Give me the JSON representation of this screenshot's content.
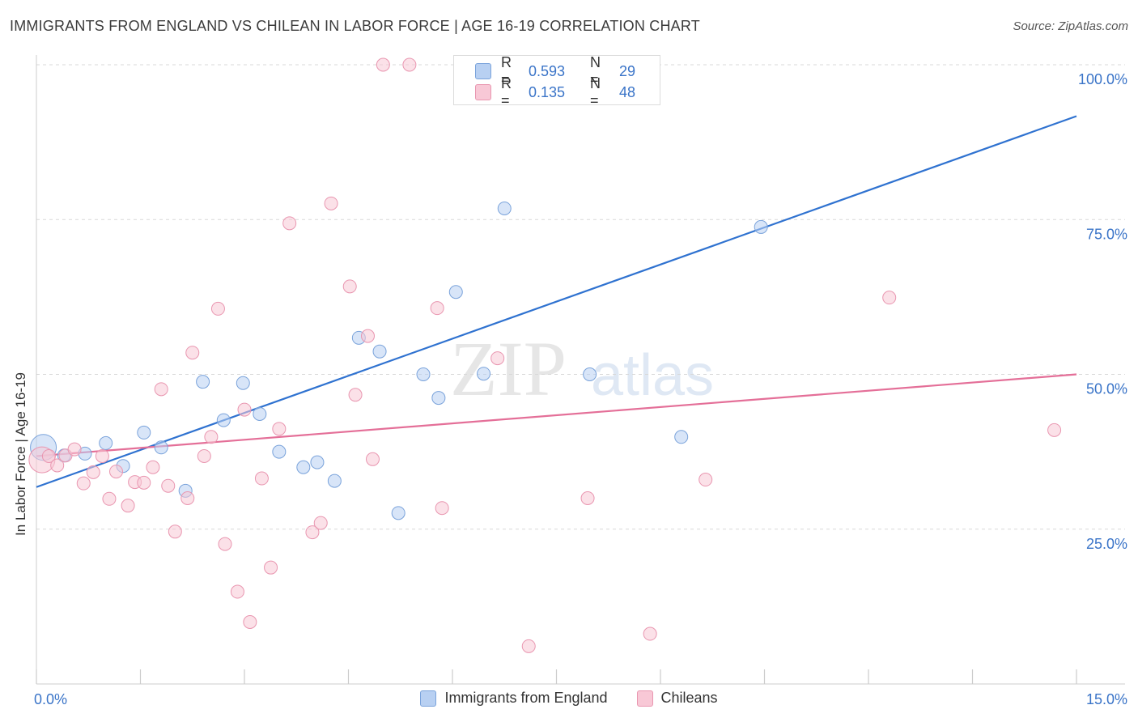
{
  "title": "IMMIGRANTS FROM ENGLAND VS CHILEAN IN LABOR FORCE | AGE 16-19 CORRELATION CHART",
  "source": "Source: ZipAtlas.com",
  "watermark": {
    "zip": "ZIP",
    "atlas": "atlas"
  },
  "colors": {
    "blue_fill": "#b8d0f2",
    "blue_stroke": "#7aa3db",
    "blue_line": "#2f72d0",
    "pink_fill": "#f8c8d6",
    "pink_stroke": "#e996b0",
    "pink_line": "#e46f98",
    "tick_label": "#3a74c8",
    "grid": "#d8d8d8"
  },
  "stats": [
    {
      "r_label": "R =",
      "r_value": "0.593",
      "n_label": "N =",
      "n_value": "29",
      "color": "blue"
    },
    {
      "r_label": "R =",
      "r_value": "0.135",
      "n_label": "N =",
      "n_value": "48",
      "color": "pink"
    }
  ],
  "legend": [
    {
      "label": "Immigrants from England",
      "color": "blue"
    },
    {
      "label": "Chileans",
      "color": "pink"
    }
  ],
  "chart_data": {
    "type": "scatter",
    "title": "IMMIGRANTS FROM ENGLAND VS CHILEAN IN LABOR FORCE | AGE 16-19 CORRELATION CHART",
    "xlabel": "",
    "ylabel": "In Labor Force | Age 16-19",
    "xlim": [
      0,
      15
    ],
    "ylim": [
      0,
      100
    ],
    "x_tick_labels": [
      {
        "value": 0,
        "label": "0.0%"
      },
      {
        "value": 15,
        "label": "15.0%"
      }
    ],
    "y_tick_labels": [
      {
        "value": 25,
        "label": "25.0%"
      },
      {
        "value": 50,
        "label": "50.0%"
      },
      {
        "value": 75,
        "label": "75.0%"
      },
      {
        "value": 100,
        "label": "100.0%"
      }
    ],
    "grid": true,
    "legend_position": "bottom",
    "series": [
      {
        "name": "Immigrants from England",
        "color": "blue",
        "trend": {
          "x": [
            0,
            15
          ],
          "y": [
            31.8,
            91.7
          ]
        },
        "points": [
          {
            "x": 0.1,
            "y": 38.2,
            "size": "large"
          },
          {
            "x": 0.4,
            "y": 36.9
          },
          {
            "x": 0.7,
            "y": 37.2
          },
          {
            "x": 1.0,
            "y": 38.9
          },
          {
            "x": 1.25,
            "y": 35.2
          },
          {
            "x": 1.55,
            "y": 40.6
          },
          {
            "x": 1.8,
            "y": 38.2
          },
          {
            "x": 2.15,
            "y": 31.2
          },
          {
            "x": 2.4,
            "y": 48.8
          },
          {
            "x": 2.7,
            "y": 42.6
          },
          {
            "x": 2.98,
            "y": 48.6
          },
          {
            "x": 3.22,
            "y": 43.6
          },
          {
            "x": 3.5,
            "y": 37.5
          },
          {
            "x": 3.85,
            "y": 35.0
          },
          {
            "x": 4.05,
            "y": 35.8
          },
          {
            "x": 4.3,
            "y": 32.8
          },
          {
            "x": 4.65,
            "y": 55.9
          },
          {
            "x": 4.95,
            "y": 53.7
          },
          {
            "x": 5.22,
            "y": 27.6
          },
          {
            "x": 5.58,
            "y": 50.0
          },
          {
            "x": 5.8,
            "y": 46.2
          },
          {
            "x": 6.05,
            "y": 63.3
          },
          {
            "x": 6.45,
            "y": 50.1
          },
          {
            "x": 6.75,
            "y": 76.8
          },
          {
            "x": 7.0,
            "y": 100.0
          },
          {
            "x": 7.35,
            "y": 100.0
          },
          {
            "x": 7.98,
            "y": 50.0
          },
          {
            "x": 9.3,
            "y": 39.9
          },
          {
            "x": 10.45,
            "y": 73.8
          }
        ]
      },
      {
        "name": "Chileans",
        "color": "pink",
        "trend": {
          "x": [
            0,
            15
          ],
          "y": [
            36.8,
            50.0
          ]
        },
        "points": [
          {
            "x": 0.08,
            "y": 36.2,
            "size": "large"
          },
          {
            "x": 0.18,
            "y": 36.8
          },
          {
            "x": 0.3,
            "y": 35.3
          },
          {
            "x": 0.42,
            "y": 36.9
          },
          {
            "x": 0.55,
            "y": 37.9
          },
          {
            "x": 0.68,
            "y": 32.4
          },
          {
            "x": 0.82,
            "y": 34.2
          },
          {
            "x": 0.95,
            "y": 36.8
          },
          {
            "x": 1.05,
            "y": 29.9
          },
          {
            "x": 1.15,
            "y": 34.3
          },
          {
            "x": 1.32,
            "y": 28.8
          },
          {
            "x": 1.42,
            "y": 32.6
          },
          {
            "x": 1.55,
            "y": 32.5
          },
          {
            "x": 1.68,
            "y": 35.0
          },
          {
            "x": 1.8,
            "y": 47.6
          },
          {
            "x": 1.9,
            "y": 32.0
          },
          {
            "x": 2.0,
            "y": 24.6
          },
          {
            "x": 2.18,
            "y": 30.0
          },
          {
            "x": 2.25,
            "y": 53.5
          },
          {
            "x": 2.42,
            "y": 36.8
          },
          {
            "x": 2.52,
            "y": 39.9
          },
          {
            "x": 2.62,
            "y": 60.6
          },
          {
            "x": 2.72,
            "y": 22.6
          },
          {
            "x": 2.9,
            "y": 14.9
          },
          {
            "x": 3.0,
            "y": 44.3
          },
          {
            "x": 3.08,
            "y": 10.0
          },
          {
            "x": 3.25,
            "y": 33.2
          },
          {
            "x": 3.38,
            "y": 18.8
          },
          {
            "x": 3.5,
            "y": 41.2
          },
          {
            "x": 3.65,
            "y": 74.4
          },
          {
            "x": 3.98,
            "y": 24.5
          },
          {
            "x": 4.1,
            "y": 26.0
          },
          {
            "x": 4.25,
            "y": 77.6
          },
          {
            "x": 4.52,
            "y": 64.2
          },
          {
            "x": 4.6,
            "y": 46.7
          },
          {
            "x": 4.78,
            "y": 56.2
          },
          {
            "x": 4.85,
            "y": 36.3
          },
          {
            "x": 5.0,
            "y": 100.0
          },
          {
            "x": 5.38,
            "y": 100.0
          },
          {
            "x": 5.78,
            "y": 60.7
          },
          {
            "x": 5.85,
            "y": 28.4
          },
          {
            "x": 6.65,
            "y": 52.6
          },
          {
            "x": 7.1,
            "y": 6.1
          },
          {
            "x": 7.95,
            "y": 30.0
          },
          {
            "x": 8.85,
            "y": 8.1
          },
          {
            "x": 9.65,
            "y": 33.0
          },
          {
            "x": 12.3,
            "y": 62.4
          },
          {
            "x": 14.68,
            "y": 41.0
          }
        ]
      }
    ]
  }
}
